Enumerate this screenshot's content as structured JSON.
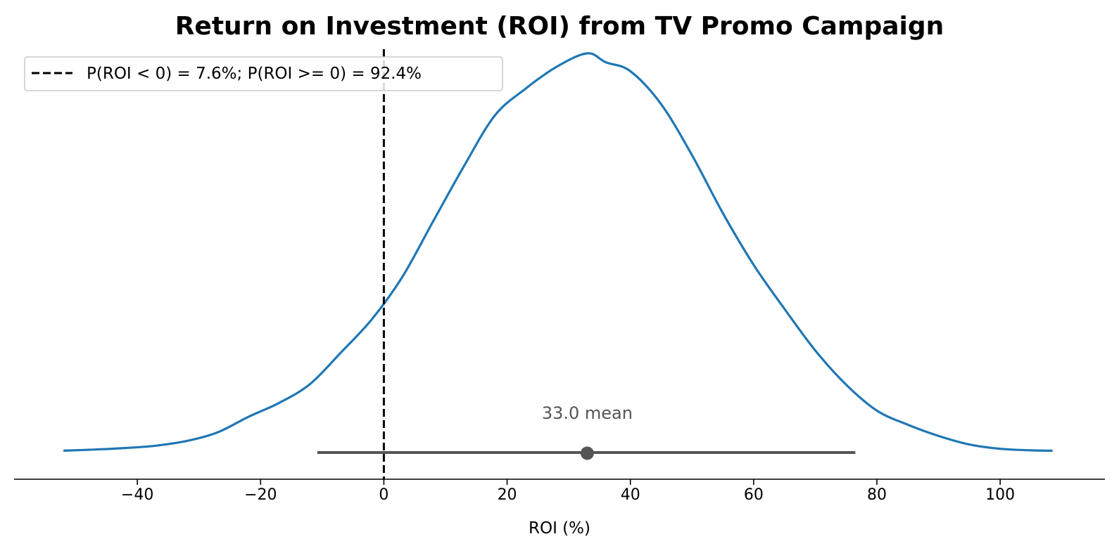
{
  "chart_data": {
    "type": "line",
    "title": "Return on Investment (ROI) from TV Promo Campaign",
    "xlabel": "ROI (%)",
    "ylabel": "",
    "xlim": [
      -60,
      117
    ],
    "ylim": [
      0,
      1.03
    ],
    "xticks": [
      -40,
      -20,
      0,
      20,
      40,
      60,
      80,
      100
    ],
    "xtick_labels": [
      "−40",
      "−20",
      "0",
      "20",
      "40",
      "60",
      "80",
      "100"
    ],
    "y_axis_visible": false,
    "grid": false,
    "legend_position": "upper-left",
    "series": [
      {
        "kind": "density",
        "color": "#1f77b4",
        "x": [
          -52,
          -47,
          -42,
          -37,
          -32,
          -27,
          -22,
          -17,
          -12,
          -7,
          -2,
          3,
          8,
          13,
          18,
          23,
          28,
          33,
          36,
          40,
          45,
          50,
          55,
          60,
          65,
          70,
          75,
          80,
          85,
          90,
          95,
          100,
          105,
          108.5
        ],
        "y": [
          0.001,
          0.004,
          0.008,
          0.014,
          0.026,
          0.048,
          0.088,
          0.124,
          0.172,
          0.253,
          0.338,
          0.448,
          0.591,
          0.733,
          0.863,
          0.932,
          0.988,
          1.023,
          1.0,
          0.977,
          0.892,
          0.761,
          0.612,
          0.479,
          0.366,
          0.259,
          0.171,
          0.104,
          0.068,
          0.039,
          0.017,
          0.006,
          0.002,
          0.001
        ]
      },
      {
        "kind": "reference-line",
        "x": 0,
        "style": "dashed",
        "color": "#000000",
        "name": "P(ROI < 0) = 7.6%; P(ROI >= 0) = 92.4%"
      }
    ],
    "interval": {
      "low": -10.8,
      "high": 76.5,
      "color": "#555555"
    },
    "mean": {
      "value": 33.0,
      "label": "33.0 mean"
    }
  }
}
